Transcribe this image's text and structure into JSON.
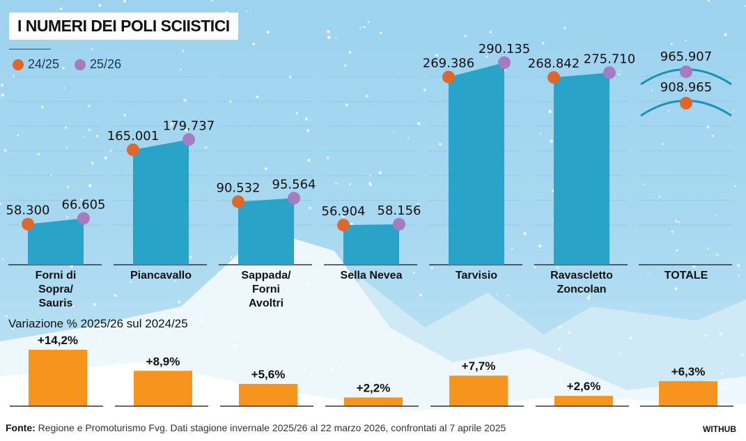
{
  "title": "I NUMERI DEI POLI SCIISTICI",
  "colors": {
    "season_2425": "#e0672a",
    "season_2526": "#a67bbf",
    "bar": "#2aa3c9",
    "change_bar": "#f7941d"
  },
  "legend": [
    {
      "label": "24/25",
      "color": "#e0672a"
    },
    {
      "label": "25/26",
      "color": "#a67bbf"
    }
  ],
  "chart_data": [
    {
      "type": "bar",
      "categories": [
        "Forni di Sopra/ Sauris",
        "Piancavallo",
        "Sappada/ Forni Avoltri",
        "Sella Nevea",
        "Tarvisio",
        "Ravascletto Zoncolan",
        "TOTALE"
      ],
      "series": [
        {
          "name": "24/25",
          "values": [
            58300,
            165001,
            90532,
            56904,
            269386,
            268842,
            908965
          ],
          "labels": [
            "58.300",
            "165.001",
            "90.532",
            "56.904",
            "269.386",
            "268.842",
            "908.965"
          ]
        },
        {
          "name": "25/26",
          "values": [
            66605,
            179737,
            95564,
            58156,
            290135,
            275710,
            965907
          ],
          "labels": [
            "66.605",
            "179.737",
            "95.564",
            "58.156",
            "290.135",
            "275.710",
            "965.907"
          ]
        }
      ],
      "grid": true
    },
    {
      "type": "bar",
      "title": "Variazione % 2025/26 sul 2024/25",
      "categories": [
        "Forni di Sopra/ Sauris",
        "Piancavallo",
        "Sappada/ Forni Avoltri",
        "Sella Nevea",
        "Tarvisio",
        "Ravascletto Zoncolan",
        "TOTALE"
      ],
      "values": [
        14.2,
        8.9,
        5.6,
        2.2,
        7.7,
        2.6,
        6.3
      ],
      "labels": [
        "+14,2%",
        "+8,9%",
        "+5,6%",
        "+2,2%",
        "+7,7%",
        "+2,6%",
        "+6,3%"
      ]
    }
  ],
  "footer": {
    "source_label": "Fonte:",
    "source_text": " Regione e Promoturismo Fvg. Dati stagione invernale 2025/26 al 22 marzo 2026,  confrontati al 7 aprile 2025",
    "brand": "WITHUB"
  }
}
